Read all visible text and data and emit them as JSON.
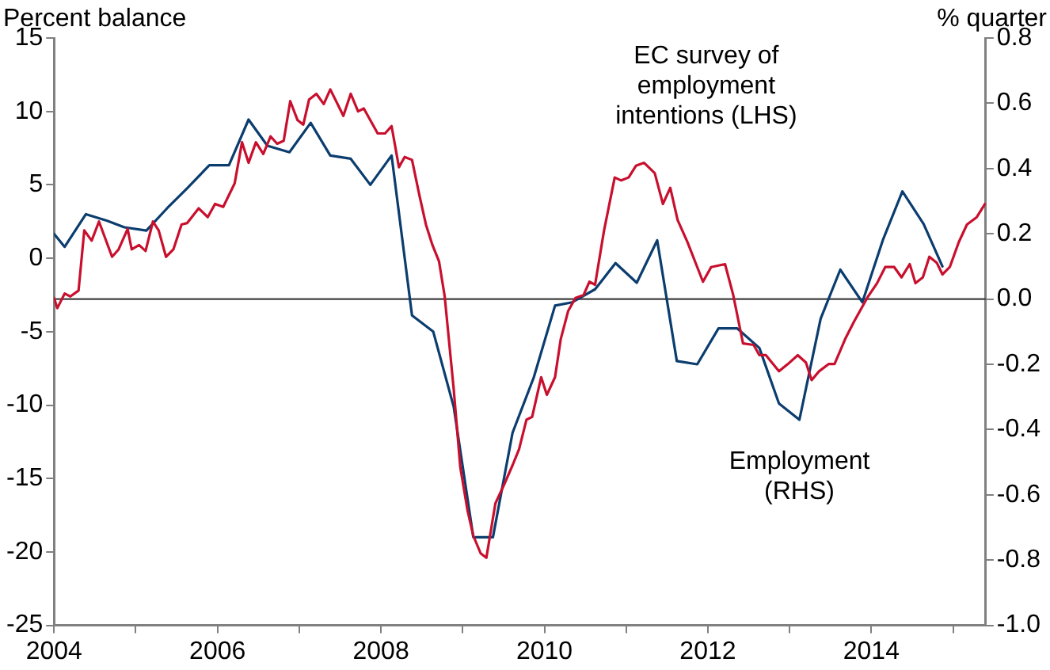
{
  "chart_data": {
    "type": "line",
    "ylabel": "Percent balance",
    "y2label": "% quarter",
    "marker": "none",
    "line_style": "solid",
    "grid": false,
    "legend": false,
    "xlim": [
      2004,
      2015.4
    ],
    "xticks": [
      2004,
      {
        "value": 2005,
        "label": null
      },
      2006,
      {
        "value": 2007,
        "label": null
      },
      2008,
      {
        "value": 2009,
        "label": null
      },
      2010,
      {
        "value": 2011,
        "label": null
      },
      2012,
      {
        "value": 2013,
        "label": null
      },
      2014,
      {
        "value": 2015,
        "label": null
      }
    ],
    "ylim": [
      -25,
      15
    ],
    "yticks": [
      -25,
      -20,
      -15,
      -10,
      -5,
      0,
      5,
      10,
      15
    ],
    "y2lim": [
      -1.0,
      0.8
    ],
    "y2ticks": [
      {
        "value": -1,
        "label": "-1.0"
      },
      -0.8,
      -0.6,
      -0.4,
      -0.2,
      {
        "value": 0,
        "label": "0.0"
      },
      0.2,
      0.4,
      0.6,
      0.8
    ],
    "ref_lines": [
      {
        "axis": "y2",
        "value": 0,
        "color": "#404040"
      }
    ],
    "series": [
      {
        "name": "EC survey of employment intentions (LHS)",
        "color": "#c8102e",
        "x": [
          2004.0,
          2004.04,
          2004.13,
          2004.2,
          2004.3,
          2004.37,
          2004.46,
          2004.55,
          2004.71,
          2004.79,
          2004.9,
          2004.95,
          2005.04,
          2005.12,
          2005.21,
          2005.28,
          2005.37,
          2005.46,
          2005.56,
          2005.63,
          2005.77,
          2005.88,
          2005.97,
          2006.07,
          2006.21,
          2006.3,
          2006.38,
          2006.47,
          2006.56,
          2006.65,
          2006.73,
          2006.81,
          2006.89,
          2006.98,
          2007.05,
          2007.12,
          2007.21,
          2007.3,
          2007.38,
          2007.54,
          2007.63,
          2007.72,
          2007.79,
          2007.96,
          2008.05,
          2008.13,
          2008.22,
          2008.29,
          2008.38,
          2008.47,
          2008.55,
          2008.63,
          2008.71,
          2008.78,
          2008.89,
          2008.97,
          2009.06,
          2009.13,
          2009.22,
          2009.29,
          2009.4,
          2009.5,
          2009.61,
          2009.69,
          2009.78,
          2009.85,
          2009.96,
          2010.03,
          2010.13,
          2010.2,
          2010.29,
          2010.38,
          2010.48,
          2010.55,
          2010.62,
          2010.73,
          2010.86,
          2010.94,
          2011.03,
          2011.12,
          2011.22,
          2011.35,
          2011.45,
          2011.54,
          2011.63,
          2011.75,
          2011.87,
          2011.94,
          2012.04,
          2012.21,
          2012.31,
          2012.43,
          2012.56,
          2012.63,
          2012.71,
          2012.87,
          2012.98,
          2013.1,
          2013.2,
          2013.27,
          2013.36,
          2013.48,
          2013.55,
          2013.68,
          2013.79,
          2013.96,
          2014.07,
          2014.17,
          2014.28,
          2014.37,
          2014.47,
          2014.54,
          2014.63,
          2014.71,
          2014.8,
          2014.87,
          2014.96,
          2015.07,
          2015.17,
          2015.29,
          2015.39
        ],
        "values": [
          -2.7,
          -3.4,
          -2.4,
          -2.6,
          -2.2,
          1.9,
          1.2,
          2.5,
          0.1,
          0.6,
          2.0,
          0.6,
          0.9,
          0.5,
          2.5,
          1.9,
          0.1,
          0.6,
          2.3,
          2.4,
          3.4,
          2.8,
          3.7,
          3.5,
          5.1,
          7.9,
          6.5,
          7.9,
          7.1,
          8.3,
          7.8,
          8.0,
          10.7,
          9.4,
          9.1,
          10.8,
          11.2,
          10.5,
          11.5,
          9.7,
          11.2,
          10.0,
          10.2,
          8.5,
          8.5,
          9.0,
          6.2,
          6.9,
          6.7,
          4.3,
          2.3,
          0.9,
          -0.2,
          -2.6,
          -8.9,
          -14.2,
          -17.2,
          -18.9,
          -20.1,
          -20.4,
          -16.7,
          -15.5,
          -14.1,
          -13.0,
          -11.0,
          -10.8,
          -8.1,
          -9.3,
          -8.1,
          -5.5,
          -3.6,
          -2.7,
          -2.5,
          -1.6,
          -1.8,
          1.9,
          5.5,
          5.3,
          5.5,
          6.3,
          6.5,
          5.8,
          3.7,
          4.8,
          2.6,
          1.1,
          -0.6,
          -1.6,
          -0.6,
          -0.4,
          -2.5,
          -5.8,
          -5.9,
          -6.6,
          -6.6,
          -7.7,
          -7.2,
          -6.6,
          -7.1,
          -8.3,
          -7.7,
          -7.2,
          -7.2,
          -5.5,
          -4.3,
          -2.6,
          -1.7,
          -0.6,
          -0.6,
          -1.3,
          -0.4,
          -1.7,
          -1.3,
          0.1,
          -0.3,
          -1.1,
          -0.6,
          1.1,
          2.3,
          2.8,
          3.7
        ]
      },
      {
        "name": "Employment (RHS)",
        "color": "#0b3d6e",
        "axis": "y2",
        "x": [
          2004.0,
          2004.13,
          2004.39,
          2004.65,
          2004.86,
          2005.13,
          2005.39,
          2005.63,
          2005.9,
          2006.14,
          2006.38,
          2006.61,
          2006.88,
          2007.14,
          2007.38,
          2007.63,
          2007.87,
          2008.13,
          2008.38,
          2008.64,
          2008.89,
          2009.13,
          2009.37,
          2009.61,
          2009.87,
          2010.13,
          2010.34,
          2010.62,
          2010.87,
          2011.13,
          2011.38,
          2011.62,
          2011.87,
          2012.13,
          2012.36,
          2012.63,
          2012.87,
          2013.12,
          2013.38,
          2013.62,
          2013.89,
          2014.14,
          2014.38,
          2014.64,
          2014.87
        ],
        "values": [
          0.2,
          0.16,
          0.26,
          0.24,
          0.22,
          0.21,
          0.28,
          0.34,
          0.41,
          0.41,
          0.55,
          0.47,
          0.45,
          0.54,
          0.44,
          0.43,
          0.35,
          0.44,
          -0.05,
          -0.1,
          -0.33,
          -0.73,
          -0.73,
          -0.41,
          -0.24,
          -0.02,
          -0.01,
          0.03,
          0.11,
          0.05,
          0.18,
          -0.19,
          -0.2,
          -0.09,
          -0.09,
          -0.15,
          -0.32,
          -0.37,
          -0.06,
          0.09,
          -0.01,
          0.18,
          0.33,
          0.23,
          0.1
        ]
      }
    ]
  }
}
